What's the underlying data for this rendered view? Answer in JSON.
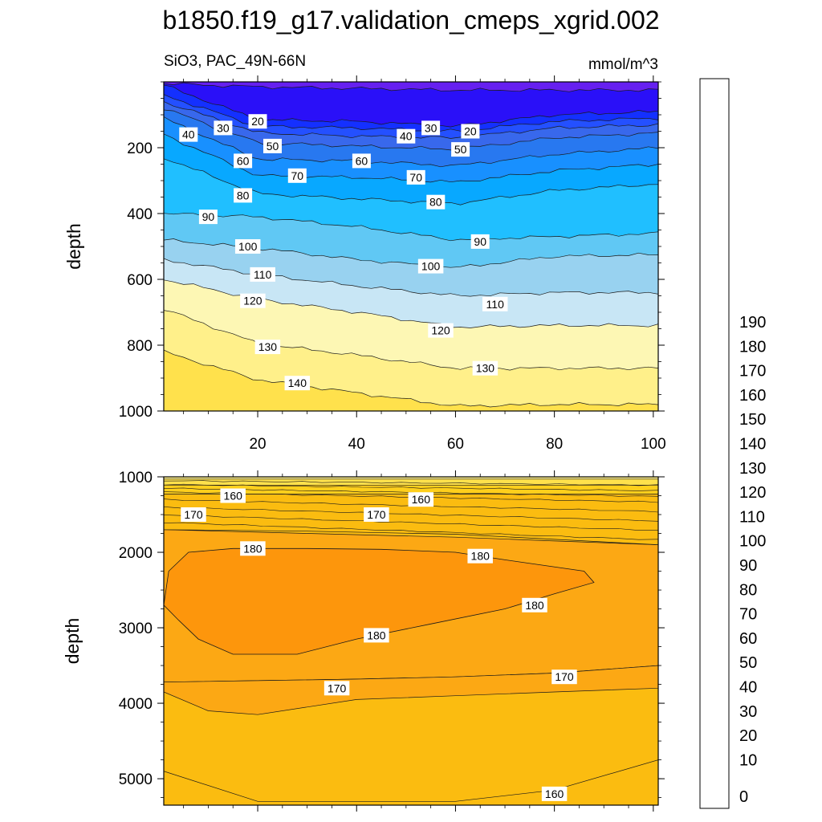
{
  "page_title": "b1850.f19_g17.validation_cmeps_xgrid.002",
  "chart_data": [
    {
      "type": "contour",
      "panel": "upper",
      "title": "SiO3, PAC_49N-66N",
      "units": "mmol/m^3",
      "xlabel": "",
      "ylabel": "depth",
      "xlim": [
        1,
        101
      ],
      "ylim": [
        1000,
        0
      ],
      "xticks": [
        20,
        40,
        60,
        80,
        100
      ],
      "yticks": [
        200,
        400,
        600,
        800,
        1000
      ],
      "contour_labels": [
        {
          "x": 20,
          "y": 120,
          "text": "20"
        },
        {
          "x": 63,
          "y": 150,
          "text": "20"
        },
        {
          "x": 13,
          "y": 140,
          "text": "30"
        },
        {
          "x": 55,
          "y": 140,
          "text": "30"
        },
        {
          "x": 6,
          "y": 160,
          "text": "40"
        },
        {
          "x": 50,
          "y": 165,
          "text": "40"
        },
        {
          "x": 23,
          "y": 195,
          "text": "50"
        },
        {
          "x": 61,
          "y": 205,
          "text": "50"
        },
        {
          "x": 17,
          "y": 240,
          "text": "60"
        },
        {
          "x": 41,
          "y": 240,
          "text": "60"
        },
        {
          "x": 28,
          "y": 285,
          "text": "70"
        },
        {
          "x": 52,
          "y": 290,
          "text": "70"
        },
        {
          "x": 17,
          "y": 345,
          "text": "80"
        },
        {
          "x": 56,
          "y": 365,
          "text": "80"
        },
        {
          "x": 10,
          "y": 410,
          "text": "90"
        },
        {
          "x": 65,
          "y": 485,
          "text": "90"
        },
        {
          "x": 18,
          "y": 500,
          "text": "100"
        },
        {
          "x": 55,
          "y": 560,
          "text": "100"
        },
        {
          "x": 21,
          "y": 585,
          "text": "110"
        },
        {
          "x": 68,
          "y": 675,
          "text": "110"
        },
        {
          "x": 19,
          "y": 665,
          "text": "120"
        },
        {
          "x": 57,
          "y": 755,
          "text": "120"
        },
        {
          "x": 22,
          "y": 805,
          "text": "130"
        },
        {
          "x": 66,
          "y": 870,
          "text": "130"
        },
        {
          "x": 28,
          "y": 915,
          "text": "140"
        }
      ]
    },
    {
      "type": "contour",
      "panel": "lower",
      "xlabel": "",
      "ylabel": "depth",
      "xlim": [
        1,
        101
      ],
      "ylim": [
        5350,
        1000
      ],
      "xticks": [
        20,
        40,
        60,
        80,
        100
      ],
      "yticks": [
        1000,
        2000,
        3000,
        4000,
        5000
      ],
      "contour_labels": [
        {
          "x": 15,
          "y": 1250,
          "text": "160"
        },
        {
          "x": 53,
          "y": 1300,
          "text": "160"
        },
        {
          "x": 7,
          "y": 1500,
          "text": "170"
        },
        {
          "x": 44,
          "y": 1500,
          "text": "170"
        },
        {
          "x": 19,
          "y": 1950,
          "text": "180"
        },
        {
          "x": 65,
          "y": 2050,
          "text": "180"
        },
        {
          "x": 76,
          "y": 2700,
          "text": "180"
        },
        {
          "x": 44,
          "y": 3100,
          "text": "180"
        },
        {
          "x": 82,
          "y": 3650,
          "text": "170"
        },
        {
          "x": 36,
          "y": 3800,
          "text": "170"
        },
        {
          "x": 80,
          "y": 5200,
          "text": "160"
        }
      ]
    }
  ],
  "colorbar": {
    "levels": [
      0,
      10,
      20,
      30,
      40,
      50,
      60,
      70,
      80,
      90,
      100,
      110,
      120,
      130,
      140,
      150,
      160,
      170,
      180,
      190
    ],
    "colors": [
      "#8328e8",
      "#6620f0",
      "#2a10f8",
      "#1430ff",
      "#2450ff",
      "#3868ec",
      "#2878f0",
      "#1890ff",
      "#08a8ff",
      "#20bfff",
      "#60c8f4",
      "#98d2f0",
      "#c8e6f5",
      "#fdf7b4",
      "#fff08a",
      "#ffe14c",
      "#ffcf1c",
      "#fbbc10",
      "#fca814",
      "#fd960c",
      "#fb8808",
      "#ff6a10",
      "#ff4c0c",
      "#ff2a0e",
      "#f50808",
      "#e10606",
      "#cd1010",
      "#d63838",
      "#ef7878",
      "#f8aeb0"
    ]
  }
}
